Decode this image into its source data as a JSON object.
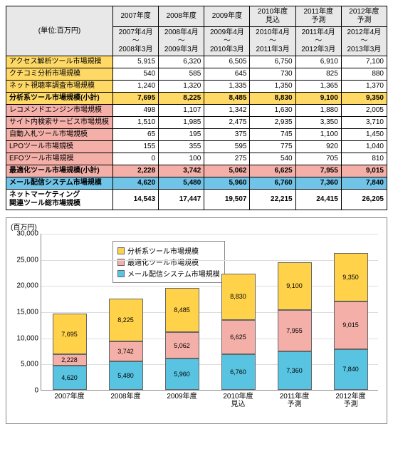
{
  "unit_label": "(単位:百万円)",
  "years": [
    "2007年度",
    "2008年度",
    "2009年度",
    "2010年度\n見込",
    "2011年度\n予測",
    "2012年度\n予測"
  ],
  "periods": [
    "2007年4月\n〜\n2008年3月",
    "2008年4月\n〜\n2009年3月",
    "2009年4月\n〜\n2010年3月",
    "2010年4月\n〜\n2011年3月",
    "2011年4月\n〜\n2012年3月",
    "2012年4月\n〜\n2013年3月"
  ],
  "rows": [
    {
      "cls": "yellow-sub",
      "label": "アクセス解析ツール市場規模",
      "vals": [
        "5,915",
        "6,320",
        "6,505",
        "6,750",
        "6,910",
        "7,100"
      ]
    },
    {
      "cls": "yellow-sub",
      "label": "クチコミ分析市場規模",
      "vals": [
        "540",
        "585",
        "645",
        "730",
        "825",
        "880"
      ]
    },
    {
      "cls": "yellow-sub",
      "label": "ネット視聴率調査市場規模",
      "vals": [
        "1,240",
        "1,320",
        "1,335",
        "1,350",
        "1,365",
        "1,370"
      ]
    },
    {
      "cls": "yellow bold",
      "label": "分析系ツール市場規模(小計)",
      "vals": [
        "7,695",
        "8,225",
        "8,485",
        "8,830",
        "9,100",
        "9,350"
      ]
    },
    {
      "cls": "pink-sub",
      "label": "レコメンドエンジン市場規模",
      "vals": [
        "498",
        "1,107",
        "1,342",
        "1,630",
        "1,880",
        "2,005"
      ]
    },
    {
      "cls": "pink-sub",
      "label": "サイト内検索サービス市場規模",
      "vals": [
        "1,510",
        "1,985",
        "2,475",
        "2,935",
        "3,350",
        "3,710"
      ]
    },
    {
      "cls": "pink-sub",
      "label": "自動入札ツール市場規模",
      "vals": [
        "65",
        "195",
        "375",
        "745",
        "1,100",
        "1,450"
      ]
    },
    {
      "cls": "pink-sub",
      "label": "LPOツール市場規模",
      "vals": [
        "155",
        "355",
        "595",
        "775",
        "920",
        "1,040"
      ]
    },
    {
      "cls": "pink-sub",
      "label": "EFOツール市場規模",
      "vals": [
        "0",
        "100",
        "275",
        "540",
        "705",
        "810"
      ]
    },
    {
      "cls": "pink bold",
      "label": "最適化ツール市場規模(小計)",
      "vals": [
        "2,228",
        "3,742",
        "5,062",
        "6,625",
        "7,955",
        "9,015"
      ]
    },
    {
      "cls": "blue bold",
      "label": "メール配信システム市場規模",
      "vals": [
        "4,620",
        "5,480",
        "5,960",
        "6,760",
        "7,360",
        "7,840"
      ]
    },
    {
      "cls": "total",
      "label": "ネットマーケティング\n関連ツール総市場規模",
      "vals": [
        "14,543",
        "17,447",
        "19,507",
        "22,215",
        "24,415",
        "26,205"
      ]
    }
  ],
  "chart": {
    "ylabel": "(百万円)",
    "ymax": 30000,
    "ytick_step": 5000,
    "categories": [
      "2007年度",
      "2008年度",
      "2009年度",
      "2010年度\n見込",
      "2011年度\n予測",
      "2012年度\n予測"
    ],
    "series": [
      {
        "name": "メール配信システム市場規模",
        "color": "#58c4e2",
        "vals": [
          4620,
          5480,
          5960,
          6760,
          7360,
          7840
        ]
      },
      {
        "name": "最適化ツール市場規模",
        "color": "#f4b0a8",
        "vals": [
          2228,
          3742,
          5062,
          6625,
          7955,
          9015
        ]
      },
      {
        "name": "分析系ツール市場規模",
        "color": "#ffd24a",
        "vals": [
          7695,
          8225,
          8485,
          8830,
          9100,
          9350
        ]
      }
    ],
    "legend_order": [
      2,
      1,
      0
    ]
  }
}
